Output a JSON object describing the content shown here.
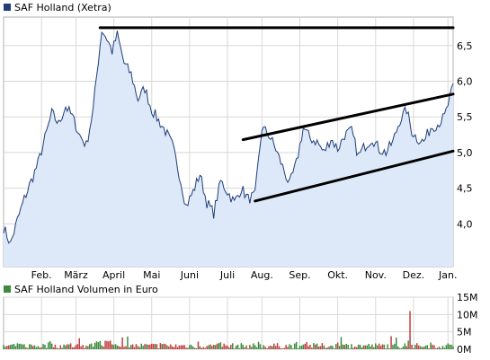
{
  "chart_data": [
    {
      "type": "area",
      "legend": "SAF Holland (Xetra)",
      "series_color": "#1f3d7a",
      "fill_color": "#dde8f8",
      "ylim": [
        3.4,
        6.9
      ],
      "y_ticks": [
        "4,0",
        "4,5",
        "5,0",
        "5,5",
        "6,0",
        "6,5"
      ],
      "y_tick_values": [
        4.0,
        4.5,
        5.0,
        5.5,
        6.0,
        6.5
      ],
      "months": [
        "Feb.",
        "März",
        "April",
        "Mai",
        "Juni",
        "Juli",
        "Aug.",
        "Sep.",
        "Okt.",
        "Nov.",
        "Dez.",
        "Jan."
      ],
      "month_day_index": [
        22,
        42,
        64,
        86,
        108,
        130,
        150,
        172,
        194,
        216,
        238,
        258
      ],
      "n_days": 262,
      "price_keypoints": [
        [
          0,
          3.95
        ],
        [
          4,
          3.72
        ],
        [
          8,
          4.05
        ],
        [
          12,
          4.35
        ],
        [
          16,
          4.6
        ],
        [
          20,
          4.85
        ],
        [
          24,
          5.2
        ],
        [
          28,
          5.55
        ],
        [
          32,
          5.4
        ],
        [
          36,
          5.65
        ],
        [
          40,
          5.5
        ],
        [
          44,
          5.25
        ],
        [
          48,
          5.1
        ],
        [
          52,
          5.6
        ],
        [
          55,
          6.3
        ],
        [
          57,
          6.72
        ],
        [
          60,
          6.6
        ],
        [
          63,
          6.42
        ],
        [
          66,
          6.65
        ],
        [
          70,
          6.25
        ],
        [
          74,
          6.1
        ],
        [
          78,
          5.75
        ],
        [
          82,
          5.9
        ],
        [
          86,
          5.6
        ],
        [
          90,
          5.45
        ],
        [
          94,
          5.3
        ],
        [
          98,
          5.1
        ],
        [
          102,
          4.7
        ],
        [
          106,
          4.25
        ],
        [
          110,
          4.45
        ],
        [
          114,
          4.7
        ],
        [
          118,
          4.3
        ],
        [
          122,
          4.15
        ],
        [
          126,
          4.6
        ],
        [
          130,
          4.45
        ],
        [
          134,
          4.3
        ],
        [
          138,
          4.5
        ],
        [
          142,
          4.35
        ],
        [
          146,
          4.4
        ],
        [
          150,
          5.35
        ],
        [
          154,
          5.25
        ],
        [
          158,
          5.05
        ],
        [
          162,
          4.8
        ],
        [
          166,
          4.55
        ],
        [
          170,
          4.85
        ],
        [
          174,
          5.35
        ],
        [
          178,
          5.2
        ],
        [
          182,
          5.15
        ],
        [
          186,
          5.0
        ],
        [
          190,
          5.2
        ],
        [
          194,
          5.05
        ],
        [
          198,
          5.25
        ],
        [
          202,
          5.3
        ],
        [
          206,
          4.95
        ],
        [
          210,
          5.1
        ],
        [
          214,
          5.2
        ],
        [
          218,
          5.05
        ],
        [
          222,
          5.0
        ],
        [
          226,
          5.15
        ],
        [
          230,
          5.45
        ],
        [
          234,
          5.6
        ],
        [
          237,
          5.3
        ],
        [
          240,
          5.2
        ],
        [
          244,
          5.15
        ],
        [
          248,
          5.35
        ],
        [
          252,
          5.4
        ],
        [
          256,
          5.5
        ],
        [
          259,
          5.75
        ],
        [
          261,
          5.92
        ]
      ],
      "annotations": [
        {
          "type": "trendline",
          "from": [
            56,
            6.75
          ],
          "to": [
            261,
            6.75
          ],
          "label": "resistance"
        },
        {
          "type": "trendline",
          "from": [
            139,
            5.18
          ],
          "to": [
            261,
            5.82
          ],
          "label": "upper channel"
        },
        {
          "type": "trendline",
          "from": [
            146,
            4.32
          ],
          "to": [
            261,
            5.02
          ],
          "label": "lower channel"
        }
      ]
    },
    {
      "type": "bar",
      "legend": "SAF Holland Volumen in Euro",
      "series_color": "#3d8a3d",
      "bar_colors": [
        "#c04040",
        "#3d8a3d"
      ],
      "ylim": [
        0,
        15
      ],
      "y_ticks": [
        "0M",
        "5M",
        "10M",
        "15M"
      ],
      "y_tick_values": [
        0,
        5,
        10,
        15
      ],
      "volume_note": "daily volume in million euro, mostly between 0 and 3M with a spike of about 11M in December"
    }
  ]
}
